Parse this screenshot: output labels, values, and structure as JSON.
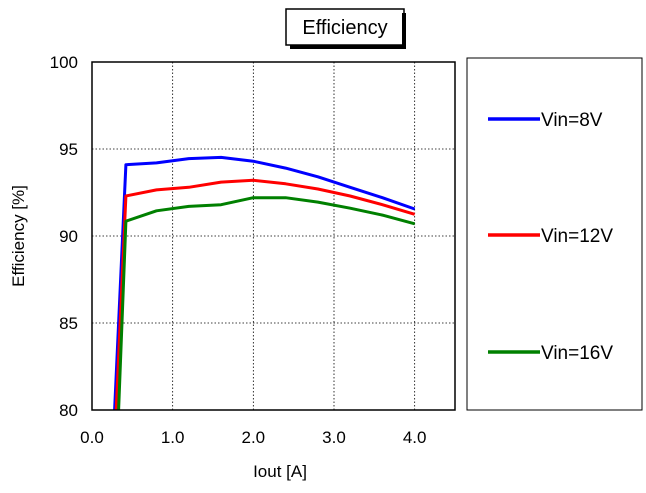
{
  "chart_data": {
    "type": "line",
    "title": "Efficiency",
    "xlabel": "Iout [A]",
    "ylabel": "Efficiency [%]",
    "xlim": [
      0,
      4.5
    ],
    "ylim": [
      80,
      100
    ],
    "xticks": [
      "0.0",
      "1.0",
      "2.0",
      "3.0",
      "4.0"
    ],
    "yticks": [
      "80",
      "85",
      "90",
      "95",
      "100"
    ],
    "grid": "dotted",
    "legend_position": "right-outside",
    "series": [
      {
        "name": "Vin=8V",
        "color": "#0000ff",
        "x": [
          0.28,
          0.42,
          0.8,
          1.2,
          1.6,
          2.0,
          2.4,
          2.8,
          3.2,
          3.6,
          4.0
        ],
        "y": [
          80.0,
          94.1,
          94.2,
          94.45,
          94.52,
          94.3,
          93.9,
          93.4,
          92.8,
          92.2,
          91.55
        ]
      },
      {
        "name": "Vin=12V",
        "color": "#ff0000",
        "x": [
          0.3,
          0.42,
          0.8,
          1.2,
          1.6,
          2.0,
          2.4,
          2.8,
          3.2,
          3.6,
          4.0
        ],
        "y": [
          80.0,
          92.3,
          92.65,
          92.8,
          93.1,
          93.2,
          93.0,
          92.7,
          92.3,
          91.8,
          91.25
        ]
      },
      {
        "name": "Vin=16V",
        "color": "#008000",
        "x": [
          0.33,
          0.42,
          0.8,
          1.2,
          1.6,
          2.0,
          2.4,
          2.8,
          3.2,
          3.6,
          4.0
        ],
        "y": [
          80.0,
          90.85,
          91.45,
          91.7,
          91.8,
          92.2,
          92.2,
          91.95,
          91.6,
          91.2,
          90.7
        ]
      }
    ]
  }
}
